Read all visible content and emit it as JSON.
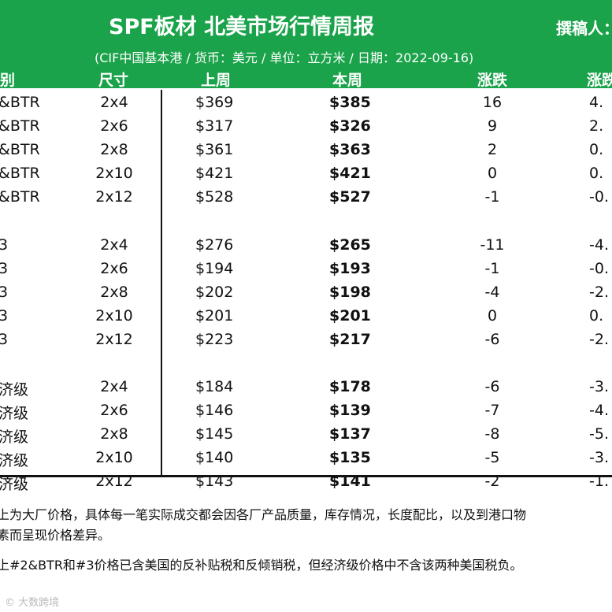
{
  "header": {
    "title": "SPF板材 北美市场行情周报",
    "author": "撰稿人：",
    "subtitle": "(CIF中国基本港 / 货币：美元 / 单位：立方米 / 日期：2022-09-16)"
  },
  "columns": {
    "grade": "别",
    "size": "尺寸",
    "last_week": "上周",
    "this_week": "本周",
    "change": "涨跌",
    "pct": "涨跌"
  },
  "rows": [
    {
      "grade": "&BTR",
      "size": "2x4",
      "last": "$369",
      "this": "$385",
      "chg": "16",
      "pct": "4."
    },
    {
      "grade": "&BTR",
      "size": "2x6",
      "last": "$317",
      "this": "$326",
      "chg": "9",
      "pct": "2."
    },
    {
      "grade": "&BTR",
      "size": "2x8",
      "last": "$361",
      "this": "$363",
      "chg": "2",
      "pct": "0."
    },
    {
      "grade": "&BTR",
      "size": "2x10",
      "last": "$421",
      "this": "$421",
      "chg": "0",
      "pct": "0."
    },
    {
      "grade": "&BTR",
      "size": "2x12",
      "last": "$528",
      "this": "$527",
      "chg": "-1",
      "pct": "-0."
    },
    {
      "grade": "3",
      "size": "2x4",
      "last": "$276",
      "this": "$265",
      "chg": "-11",
      "pct": "-4."
    },
    {
      "grade": "3",
      "size": "2x6",
      "last": "$194",
      "this": "$193",
      "chg": "-1",
      "pct": "-0."
    },
    {
      "grade": "3",
      "size": "2x8",
      "last": "$202",
      "this": "$198",
      "chg": "-4",
      "pct": "-2."
    },
    {
      "grade": "3",
      "size": "2x10",
      "last": "$201",
      "this": "$201",
      "chg": "0",
      "pct": "0."
    },
    {
      "grade": "3",
      "size": "2x12",
      "last": "$223",
      "this": "$217",
      "chg": "-6",
      "pct": "-2."
    },
    {
      "grade": "济级",
      "size": "2x4",
      "last": "$184",
      "this": "$178",
      "chg": "-6",
      "pct": "-3."
    },
    {
      "grade": "济级",
      "size": "2x6",
      "last": "$146",
      "this": "$139",
      "chg": "-7",
      "pct": "-4."
    },
    {
      "grade": "济级",
      "size": "2x8",
      "last": "$145",
      "this": "$137",
      "chg": "-8",
      "pct": "-5."
    },
    {
      "grade": "济级",
      "size": "2x10",
      "last": "$140",
      "this": "$135",
      "chg": "-5",
      "pct": "-3."
    },
    {
      "grade": "济级",
      "size": "2x12",
      "last": "$143",
      "this": "$141",
      "chg": "-2",
      "pct": "-1."
    }
  ],
  "notes": {
    "line1": "上为大厂价格，具体每一笔实际成交都会因各厂产品质量，库存情况，长度配比，以及到港口物",
    "line2": "素而呈现价格差异。",
    "line3": "上#2&BTR和#3价格已含美国的反补贴税和反倾销税，但经济级价格中不含该两种美国税负。"
  },
  "watermark": "© 大数跨境",
  "colors": {
    "header_bg": "#1aa34a",
    "text": "#111111"
  }
}
